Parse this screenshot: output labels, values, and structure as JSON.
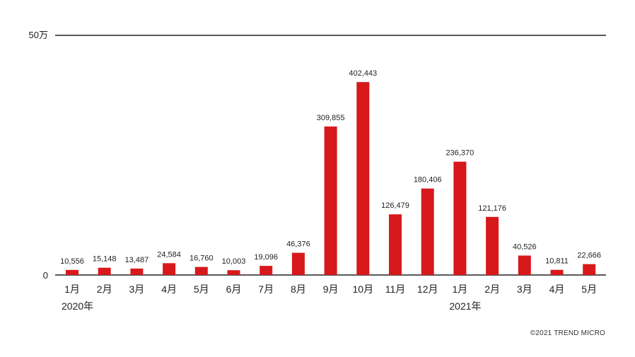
{
  "chart_data": {
    "type": "bar",
    "categories": [
      "1月",
      "2月",
      "3月",
      "4月",
      "5月",
      "6月",
      "7月",
      "8月",
      "9月",
      "10月",
      "11月",
      "12月",
      "1月",
      "2月",
      "3月",
      "4月",
      "5月"
    ],
    "values": [
      10556,
      15148,
      13487,
      24584,
      16760,
      10003,
      19096,
      46376,
      309855,
      402443,
      126479,
      180406,
      236370,
      121176,
      40526,
      10811,
      22666
    ],
    "value_labels": [
      "10,556",
      "15,148",
      "13,487",
      "24,584",
      "16,760",
      "10,003",
      "19,096",
      "46,376",
      "309,855",
      "402,443",
      "126,479",
      "180,406",
      "236,370",
      "121,176",
      "40,526",
      "10,811",
      "22,666"
    ],
    "ylim": [
      0,
      500000
    ],
    "y_tick_labels": {
      "max": "50万",
      "zero": "0"
    },
    "year_labels": [
      {
        "text": "2020年",
        "index": 0
      },
      {
        "text": "2021年",
        "index": 12
      }
    ],
    "bar_color": "#d7191c",
    "axis_color": "#222222",
    "grid": false
  },
  "footer": {
    "copyright": "©2021 TREND MICRO"
  }
}
